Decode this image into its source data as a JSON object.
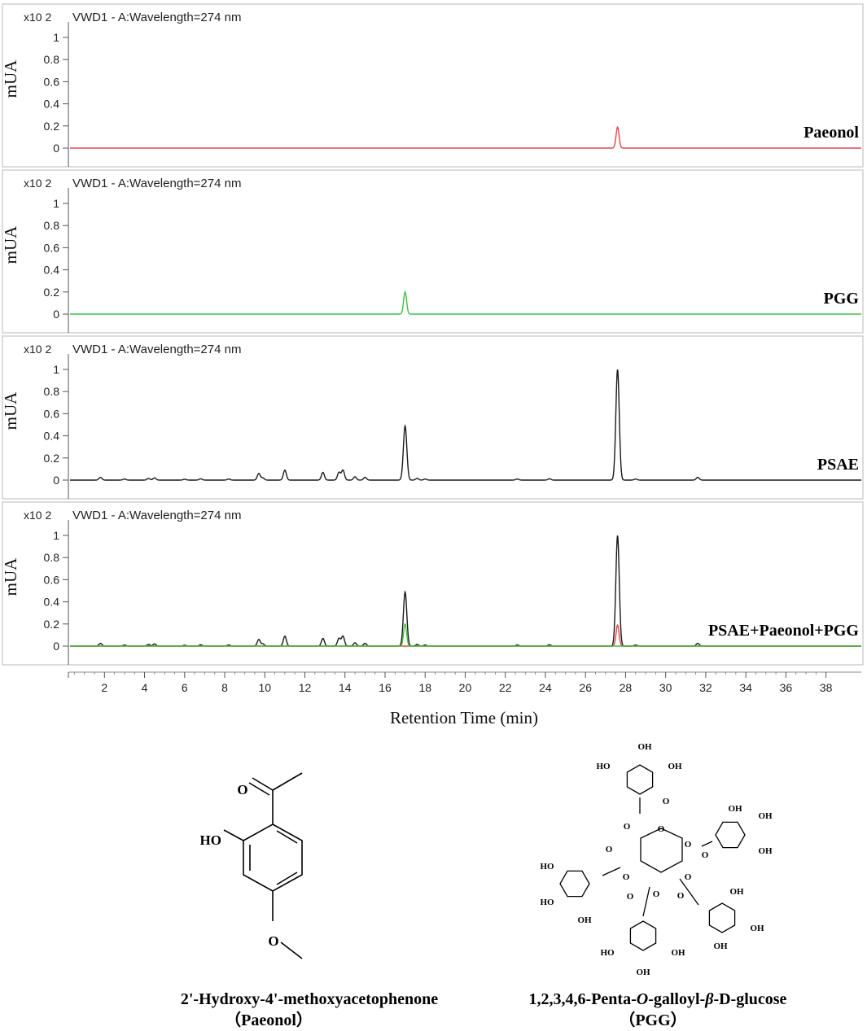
{
  "chart_data": {
    "type": "line",
    "xlabel": "Retention Time (min)",
    "ylabel": "mUA",
    "xlim": [
      0,
      40
    ],
    "x_ticks": [
      "2",
      "4",
      "6",
      "8",
      "10",
      "12",
      "14",
      "16",
      "18",
      "20",
      "22",
      "24",
      "26",
      "28",
      "30",
      "32",
      "34",
      "36",
      "38"
    ],
    "y_ticks": [
      "1",
      "0.8",
      "0.6",
      "0.4",
      "0.2",
      "0"
    ],
    "panels": [
      {
        "header": "VWD1 - A:Wavelength=274 nm",
        "scale": "x10 2",
        "label": "Paeonol",
        "series": [
          {
            "color": "#e8434b",
            "baseline": 0,
            "peaks": [
              [
                27.6,
                0.19
              ]
            ]
          }
        ]
      },
      {
        "header": "VWD1 - A:Wavelength=274 nm",
        "scale": "x10 2",
        "label": "PGG",
        "series": [
          {
            "color": "#3cc43c",
            "baseline": 0,
            "peaks": [
              [
                17.0,
                0.2
              ]
            ]
          }
        ]
      },
      {
        "header": "VWD1 - A:Wavelength=274 nm",
        "scale": "x10 2",
        "label": "PSAE",
        "series": [
          {
            "color": "#1a1a1a",
            "baseline": 0,
            "peaks": [
              [
                1.8,
                0.025
              ],
              [
                3.0,
                0.01
              ],
              [
                4.2,
                0.015
              ],
              [
                4.5,
                0.02
              ],
              [
                6.0,
                0.008
              ],
              [
                6.8,
                0.012
              ],
              [
                8.2,
                0.01
              ],
              [
                9.7,
                0.06
              ],
              [
                9.9,
                0.02
              ],
              [
                11.0,
                0.09
              ],
              [
                12.9,
                0.07
              ],
              [
                13.7,
                0.07
              ],
              [
                13.9,
                0.09
              ],
              [
                14.5,
                0.03
              ],
              [
                15.0,
                0.025
              ],
              [
                17.0,
                0.49
              ],
              [
                17.6,
                0.015
              ],
              [
                18.0,
                0.01
              ],
              [
                22.6,
                0.01
              ],
              [
                24.2,
                0.012
              ],
              [
                27.6,
                1.0
              ],
              [
                28.5,
                0.01
              ],
              [
                31.6,
                0.025
              ]
            ]
          }
        ]
      },
      {
        "header": "VWD1 - A:Wavelength=274 nm",
        "scale": "x10 2",
        "label": "PSAE+Paeonol+PGG",
        "series": [
          {
            "color": "#1a1a1a",
            "baseline": 0,
            "peaks": [
              [
                1.8,
                0.025
              ],
              [
                3.0,
                0.01
              ],
              [
                4.2,
                0.015
              ],
              [
                4.5,
                0.02
              ],
              [
                6.0,
                0.008
              ],
              [
                6.8,
                0.012
              ],
              [
                8.2,
                0.01
              ],
              [
                9.7,
                0.06
              ],
              [
                9.9,
                0.02
              ],
              [
                11.0,
                0.09
              ],
              [
                12.9,
                0.07
              ],
              [
                13.7,
                0.07
              ],
              [
                13.9,
                0.09
              ],
              [
                14.5,
                0.03
              ],
              [
                15.0,
                0.025
              ],
              [
                17.0,
                0.49
              ],
              [
                17.6,
                0.015
              ],
              [
                18.0,
                0.01
              ],
              [
                22.6,
                0.01
              ],
              [
                24.2,
                0.012
              ],
              [
                27.6,
                1.0
              ],
              [
                28.5,
                0.01
              ],
              [
                31.6,
                0.025
              ]
            ]
          },
          {
            "color": "#e8434b",
            "baseline": 0,
            "peaks": [
              [
                27.6,
                0.19
              ]
            ]
          },
          {
            "color": "#3cc43c",
            "baseline": 0,
            "peaks": [
              [
                17.0,
                0.2
              ]
            ]
          }
        ]
      }
    ]
  },
  "structures": {
    "paeonol": {
      "atoms": {
        "O_carbonyl": "O",
        "O_hydroxy": "HO",
        "O_methoxy": "O"
      },
      "name": "2'-Hydroxy-4'-methoxyacetophenone",
      "abbr": "（Paeonol）"
    },
    "pgg": {
      "oh_label": "OH",
      "ho_label": "HO",
      "o_label": "O",
      "name_parts": [
        "1,2,3,4,6-Penta-",
        "O",
        "-galloyl-",
        "β",
        "-D-glucose"
      ],
      "abbr": "（PGG）"
    }
  }
}
